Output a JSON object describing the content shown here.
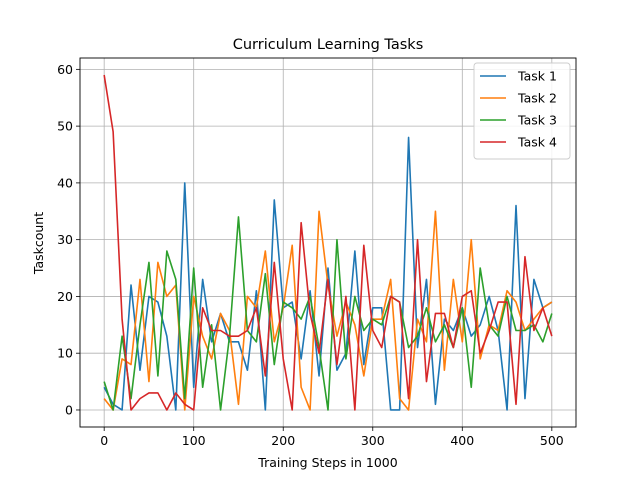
{
  "chart_data": {
    "type": "line",
    "title": "Curriculum Learning Tasks",
    "xlabel": "Training Steps in 1000",
    "ylabel": "Taskcount",
    "xlim": [
      -27,
      527
    ],
    "ylim": [
      -3,
      62
    ],
    "xticks": [
      0,
      100,
      200,
      300,
      400,
      500
    ],
    "yticks": [
      0,
      10,
      20,
      30,
      40,
      50,
      60
    ],
    "grid": true,
    "legend_position": "top-right",
    "x": [
      0,
      10,
      20,
      30,
      40,
      50,
      60,
      70,
      80,
      90,
      100,
      110,
      120,
      130,
      140,
      150,
      160,
      170,
      180,
      190,
      200,
      210,
      220,
      230,
      240,
      250,
      260,
      270,
      280,
      290,
      300,
      310,
      320,
      330,
      340,
      350,
      360,
      370,
      380,
      390,
      400,
      410,
      420,
      430,
      440,
      450,
      460,
      470,
      480,
      490,
      500
    ],
    "series": [
      {
        "name": "Task 1",
        "color": "#1f77b4",
        "values": [
          4,
          1,
          0,
          22,
          7,
          20,
          19,
          13,
          0,
          40,
          4,
          23,
          12,
          17,
          12,
          12,
          7,
          21,
          0,
          37,
          18,
          19,
          9,
          21,
          6,
          25,
          7,
          10,
          28,
          8,
          18,
          18,
          0,
          0,
          48,
          11,
          23,
          1,
          16,
          14,
          18,
          13,
          15,
          20,
          14,
          0,
          36,
          2,
          23,
          18,
          19
        ]
      },
      {
        "name": "Task 2",
        "color": "#ff7f0e",
        "values": [
          2,
          0,
          9,
          8,
          23,
          5,
          26,
          20,
          22,
          0,
          20,
          13,
          9,
          17,
          14,
          1,
          20,
          18,
          28,
          12,
          18,
          29,
          4,
          0,
          35,
          22,
          13,
          19,
          15,
          6,
          16,
          16,
          23,
          2,
          0,
          16,
          12,
          35,
          7,
          23,
          12,
          30,
          9,
          15,
          14,
          21,
          19,
          14,
          16,
          18,
          19
        ]
      },
      {
        "name": "Task 3",
        "color": "#2ca02c",
        "values": [
          5,
          0,
          13,
          2,
          15,
          26,
          6,
          28,
          23,
          2,
          25,
          4,
          15,
          0,
          13,
          34,
          14,
          12,
          24,
          8,
          19,
          18,
          16,
          20,
          11,
          0,
          30,
          9,
          20,
          14,
          16,
          15,
          20,
          19,
          11,
          13,
          18,
          12,
          15,
          11,
          18,
          4,
          25,
          15,
          13,
          20,
          14,
          14,
          15,
          12,
          17
        ]
      },
      {
        "name": "Task 4",
        "color": "#d62728",
        "values": [
          59,
          49,
          16,
          0,
          2,
          3,
          3,
          0,
          3,
          1,
          0,
          18,
          14,
          14,
          13,
          13,
          14,
          18,
          6,
          26,
          9,
          0,
          33,
          17,
          10,
          23,
          8,
          20,
          0,
          29,
          14,
          11,
          20,
          19,
          2,
          30,
          5,
          17,
          17,
          11,
          20,
          21,
          10,
          14,
          19,
          19,
          1,
          27,
          14,
          18,
          13
        ]
      }
    ]
  }
}
